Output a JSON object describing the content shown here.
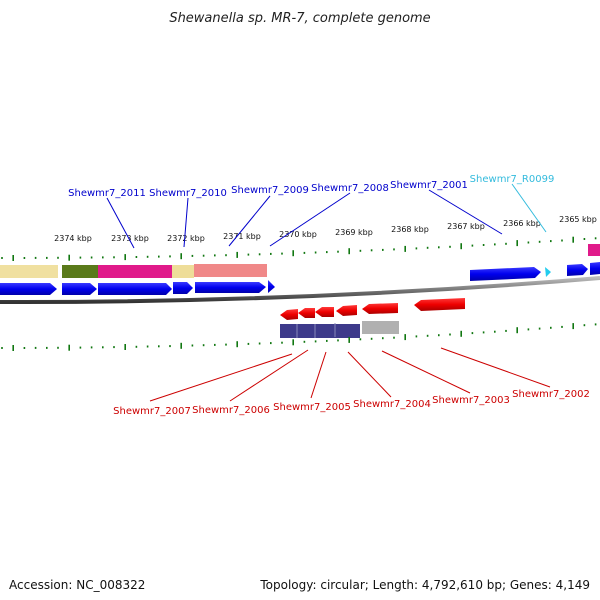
{
  "title": "Shewanella sp. MR-7, complete genome",
  "kbp_ticks": [
    "2374 kbp",
    "2373 kbp",
    "2372 kbp",
    "2371 kbp",
    "2370 kbp",
    "2369 kbp",
    "2368 kbp",
    "2367 kbp",
    "2366 kbp",
    "2365 kbp"
  ],
  "upper_labels": [
    "Shewmr7_2011",
    "Shewmr7_2010",
    "Shewmr7_2009",
    "Shewmr7_2008",
    "Shewmr7_2001",
    "Shewmr7_R0099"
  ],
  "lower_labels": [
    "Shewmr7_2007",
    "Shewmr7_2006",
    "Shewmr7_2005",
    "Shewmr7_2004",
    "Shewmr7_2003",
    "Shewmr7_2002"
  ],
  "colors": {
    "forward_gene": "#0000ee",
    "reverse_gene": "#ee0000",
    "rna_gene": "#22ccee",
    "label_forward": "#0000cc",
    "label_reverse": "#cc0000",
    "label_rna": "#33bbdd",
    "tick": "#117711",
    "backbone": "#777777"
  },
  "footer": {
    "accession": "Accession: NC_008322",
    "summary": "Topology: circular; Length: 4,792,610 bp; Genes: 4,149"
  }
}
